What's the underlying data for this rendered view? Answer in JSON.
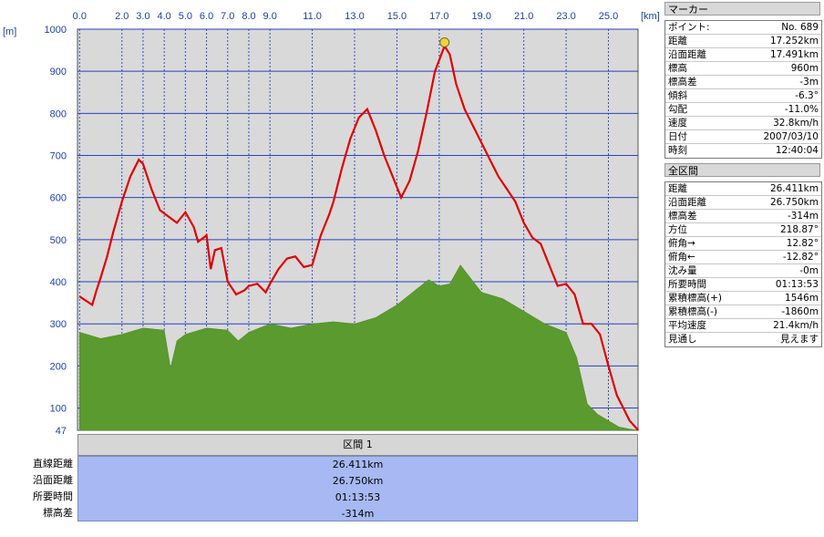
{
  "chart_data": {
    "type": "area",
    "x_unit": "[km]",
    "y_unit": "[m]",
    "x_ticks": [
      "0.0",
      "2.0",
      "3.0",
      "4.0",
      "5.0",
      "6.0",
      "7.0",
      "8.0",
      "9.0",
      "11.0",
      "13.0",
      "15.0",
      "17.0",
      "19.0",
      "21.0",
      "23.0",
      "25.0"
    ],
    "x_tick_values": [
      0,
      2,
      3,
      4,
      5,
      6,
      7,
      8,
      9,
      11,
      13,
      15,
      17,
      19,
      21,
      23,
      25
    ],
    "y_ticks": [
      "1000",
      "900",
      "800",
      "700",
      "600",
      "500",
      "400",
      "300",
      "200",
      "100",
      "47"
    ],
    "y_tick_values": [
      1000,
      900,
      800,
      700,
      600,
      500,
      400,
      300,
      200,
      100,
      47
    ],
    "xlim": [
      -0.1,
      26.4
    ],
    "ylim": [
      47,
      1000
    ],
    "grid": true,
    "series": [
      {
        "color": "#e00000",
        "x": [
          0,
          0.3,
          0.6,
          0.8,
          1.0,
          1.3,
          1.6,
          2.0,
          2.4,
          2.8,
          3.0,
          3.4,
          3.8,
          4.2,
          4.6,
          5.0,
          5.4,
          5.6,
          6.0,
          6.2,
          6.4,
          6.7,
          7.0,
          7.4,
          7.8,
          8.0,
          8.4,
          8.8,
          9.0,
          9.4,
          9.8,
          10.2,
          10.6,
          11.0,
          11.4,
          11.8,
          12.0,
          12.4,
          12.8,
          13.2,
          13.6,
          14.0,
          14.4,
          14.8,
          15.2,
          15.6,
          16.0,
          16.4,
          16.8,
          17.25,
          17.5,
          17.8,
          18.2,
          18.6,
          19.0,
          19.4,
          19.8,
          20.2,
          20.6,
          21.0,
          21.4,
          21.8,
          22.2,
          22.6,
          23.0,
          23.4,
          23.8,
          24.2,
          24.6,
          25.0,
          25.4,
          25.7,
          26.0,
          26.411
        ],
        "y": [
          365,
          355,
          345,
          380,
          410,
          460,
          520,
          590,
          650,
          690,
          680,
          620,
          570,
          555,
          540,
          565,
          530,
          495,
          510,
          430,
          475,
          480,
          400,
          370,
          380,
          390,
          395,
          375,
          395,
          430,
          455,
          460,
          435,
          440,
          510,
          560,
          590,
          670,
          740,
          790,
          810,
          760,
          700,
          650,
          600,
          640,
          710,
          800,
          900,
          960,
          940,
          870,
          810,
          770,
          730,
          690,
          650,
          620,
          590,
          540,
          505,
          490,
          440,
          390,
          395,
          370,
          300,
          300,
          275,
          200,
          130,
          100,
          70,
          47
        ]
      },
      {
        "color": "#5a9a2e",
        "x": [
          0,
          1,
          2,
          3,
          4,
          4.3,
          4.6,
          5,
          6,
          7,
          7.5,
          8,
          9,
          10,
          11,
          12,
          13,
          14,
          15,
          16,
          16.5,
          17,
          17.5,
          18,
          19,
          20,
          21,
          22,
          23,
          23.5,
          24,
          24.5,
          25,
          25.5,
          26,
          26.411
        ],
        "y": [
          280,
          265,
          275,
          290,
          285,
          195,
          260,
          275,
          290,
          285,
          260,
          280,
          300,
          290,
          300,
          305,
          300,
          315,
          345,
          385,
          405,
          390,
          395,
          440,
          375,
          360,
          330,
          300,
          280,
          220,
          110,
          85,
          70,
          55,
          50,
          47
        ]
      }
    ]
  },
  "panel_marker": {
    "title": "マーカー",
    "rows": [
      {
        "label": "ポイント:",
        "value": "No. 689"
      },
      {
        "label": "距離",
        "value": "17.252km"
      },
      {
        "label": "沿面距離",
        "value": "17.491km"
      },
      {
        "label": "標高",
        "value": "960m"
      },
      {
        "label": "標高差",
        "value": "-3m"
      },
      {
        "label": "傾斜",
        "value": "-6.3°"
      },
      {
        "label": "勾配",
        "value": "-11.0%"
      },
      {
        "label": "速度",
        "value": "32.8km/h"
      },
      {
        "label": "日付",
        "value": "2007/03/10"
      },
      {
        "label": "時刻",
        "value": "12:40:04"
      }
    ]
  },
  "panel_all": {
    "title": "全区間",
    "rows": [
      {
        "label": "距離",
        "value": "26.411km"
      },
      {
        "label": "沿面距離",
        "value": "26.750km"
      },
      {
        "label": "標高差",
        "value": "-314m"
      },
      {
        "label": "方位",
        "value": "218.87°"
      },
      {
        "label": "俯角→",
        "value": "12.82°"
      },
      {
        "label": "俯角←",
        "value": "-12.82°"
      },
      {
        "label": "沈み量",
        "value": "-0m"
      },
      {
        "label": "所要時間",
        "value": "01:13:53"
      },
      {
        "label": "累積標高(+)",
        "value": "1546m"
      },
      {
        "label": "累積標高(-)",
        "value": "-1860m"
      },
      {
        "label": "平均速度",
        "value": "21.4km/h"
      },
      {
        "label": "見通し",
        "value": "見えます"
      }
    ]
  },
  "section": {
    "header": "区間 1",
    "labels": [
      "直線距離",
      "沿面距離",
      "所要時間",
      "標高差"
    ],
    "values": [
      "26.411km",
      "26.750km",
      "01:13:53",
      "-314m"
    ]
  },
  "marker_x": 17.252,
  "marker_y": 960
}
